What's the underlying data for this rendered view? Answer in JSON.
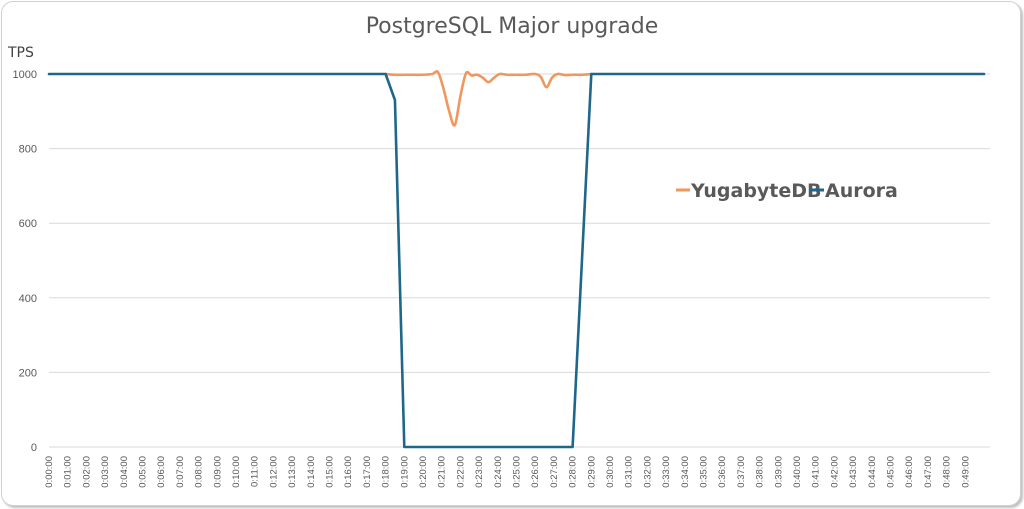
{
  "chart_data": {
    "type": "line",
    "title": "PostgreSQL Major upgrade",
    "xlabel": "",
    "ylabel": "TPS",
    "ylim": [
      0,
      1000
    ],
    "yticks": [
      0,
      200,
      400,
      600,
      800,
      1000
    ],
    "grid": true,
    "legend_position": "inside-right",
    "xticks": [
      "0:00:00",
      "0:01:00",
      "0:02:00",
      "0:03:00",
      "0:04:00",
      "0:05:00",
      "0:06:00",
      "0:07:00",
      "0:08:00",
      "0:09:00",
      "0:10:00",
      "0:11:00",
      "0:12:00",
      "0:13:00",
      "0:14:00",
      "0:15:00",
      "0:16:00",
      "0:17:00",
      "0:18:00",
      "0:19:00",
      "0:20:00",
      "0:21:00",
      "0:22:00",
      "0:23:00",
      "0:24:00",
      "0:25:00",
      "0:26:00",
      "0:27:00",
      "0:28:00",
      "0:29:00",
      "0:30:00",
      "0:31:00",
      "0:32:00",
      "0:33:00",
      "0:34:00",
      "0:35:00",
      "0:36:00",
      "0:37:00",
      "0:38:00",
      "0:39:00",
      "0:40:00",
      "0:41:00",
      "0:42:00",
      "0:43:00",
      "0:44:00",
      "0:45:00",
      "0:46:00",
      "0:47:00",
      "0:48:00",
      "0:49:00"
    ],
    "series": [
      {
        "name": "YugabyteDB",
        "color": "#F0975E",
        "smooth": true,
        "points": [
          [
            18.0,
            1000
          ],
          [
            18.5,
            998
          ],
          [
            19.0,
            998
          ],
          [
            19.5,
            998
          ],
          [
            20.0,
            998
          ],
          [
            20.5,
            1000
          ],
          [
            20.8,
            1005
          ],
          [
            21.1,
            960
          ],
          [
            21.4,
            900
          ],
          [
            21.7,
            863
          ],
          [
            22.0,
            940
          ],
          [
            22.3,
            1002
          ],
          [
            22.6,
            996
          ],
          [
            22.9,
            998
          ],
          [
            23.2,
            990
          ],
          [
            23.5,
            978
          ],
          [
            23.8,
            990
          ],
          [
            24.1,
            1000
          ],
          [
            24.5,
            998
          ],
          [
            25.0,
            998
          ],
          [
            25.5,
            998
          ],
          [
            26.0,
            1000
          ],
          [
            26.3,
            992
          ],
          [
            26.6,
            965
          ],
          [
            26.9,
            990
          ],
          [
            27.2,
            1000
          ],
          [
            27.6,
            997
          ],
          [
            28.0,
            998
          ],
          [
            28.5,
            998
          ],
          [
            29.0,
            1000
          ]
        ]
      },
      {
        "name": "Aurora",
        "color": "#1F6788",
        "smooth": false,
        "points": [
          [
            0,
            1000
          ],
          [
            18.0,
            1000
          ],
          [
            18.5,
            930
          ],
          [
            19.0,
            0
          ],
          [
            28.0,
            0
          ],
          [
            29.0,
            1000
          ],
          [
            50.0,
            1000
          ]
        ]
      }
    ]
  },
  "legend": {
    "items": [
      {
        "label": "YugabyteDB",
        "color": "#F0975E"
      },
      {
        "label": "Aurora",
        "color": "#1F6788"
      }
    ]
  }
}
